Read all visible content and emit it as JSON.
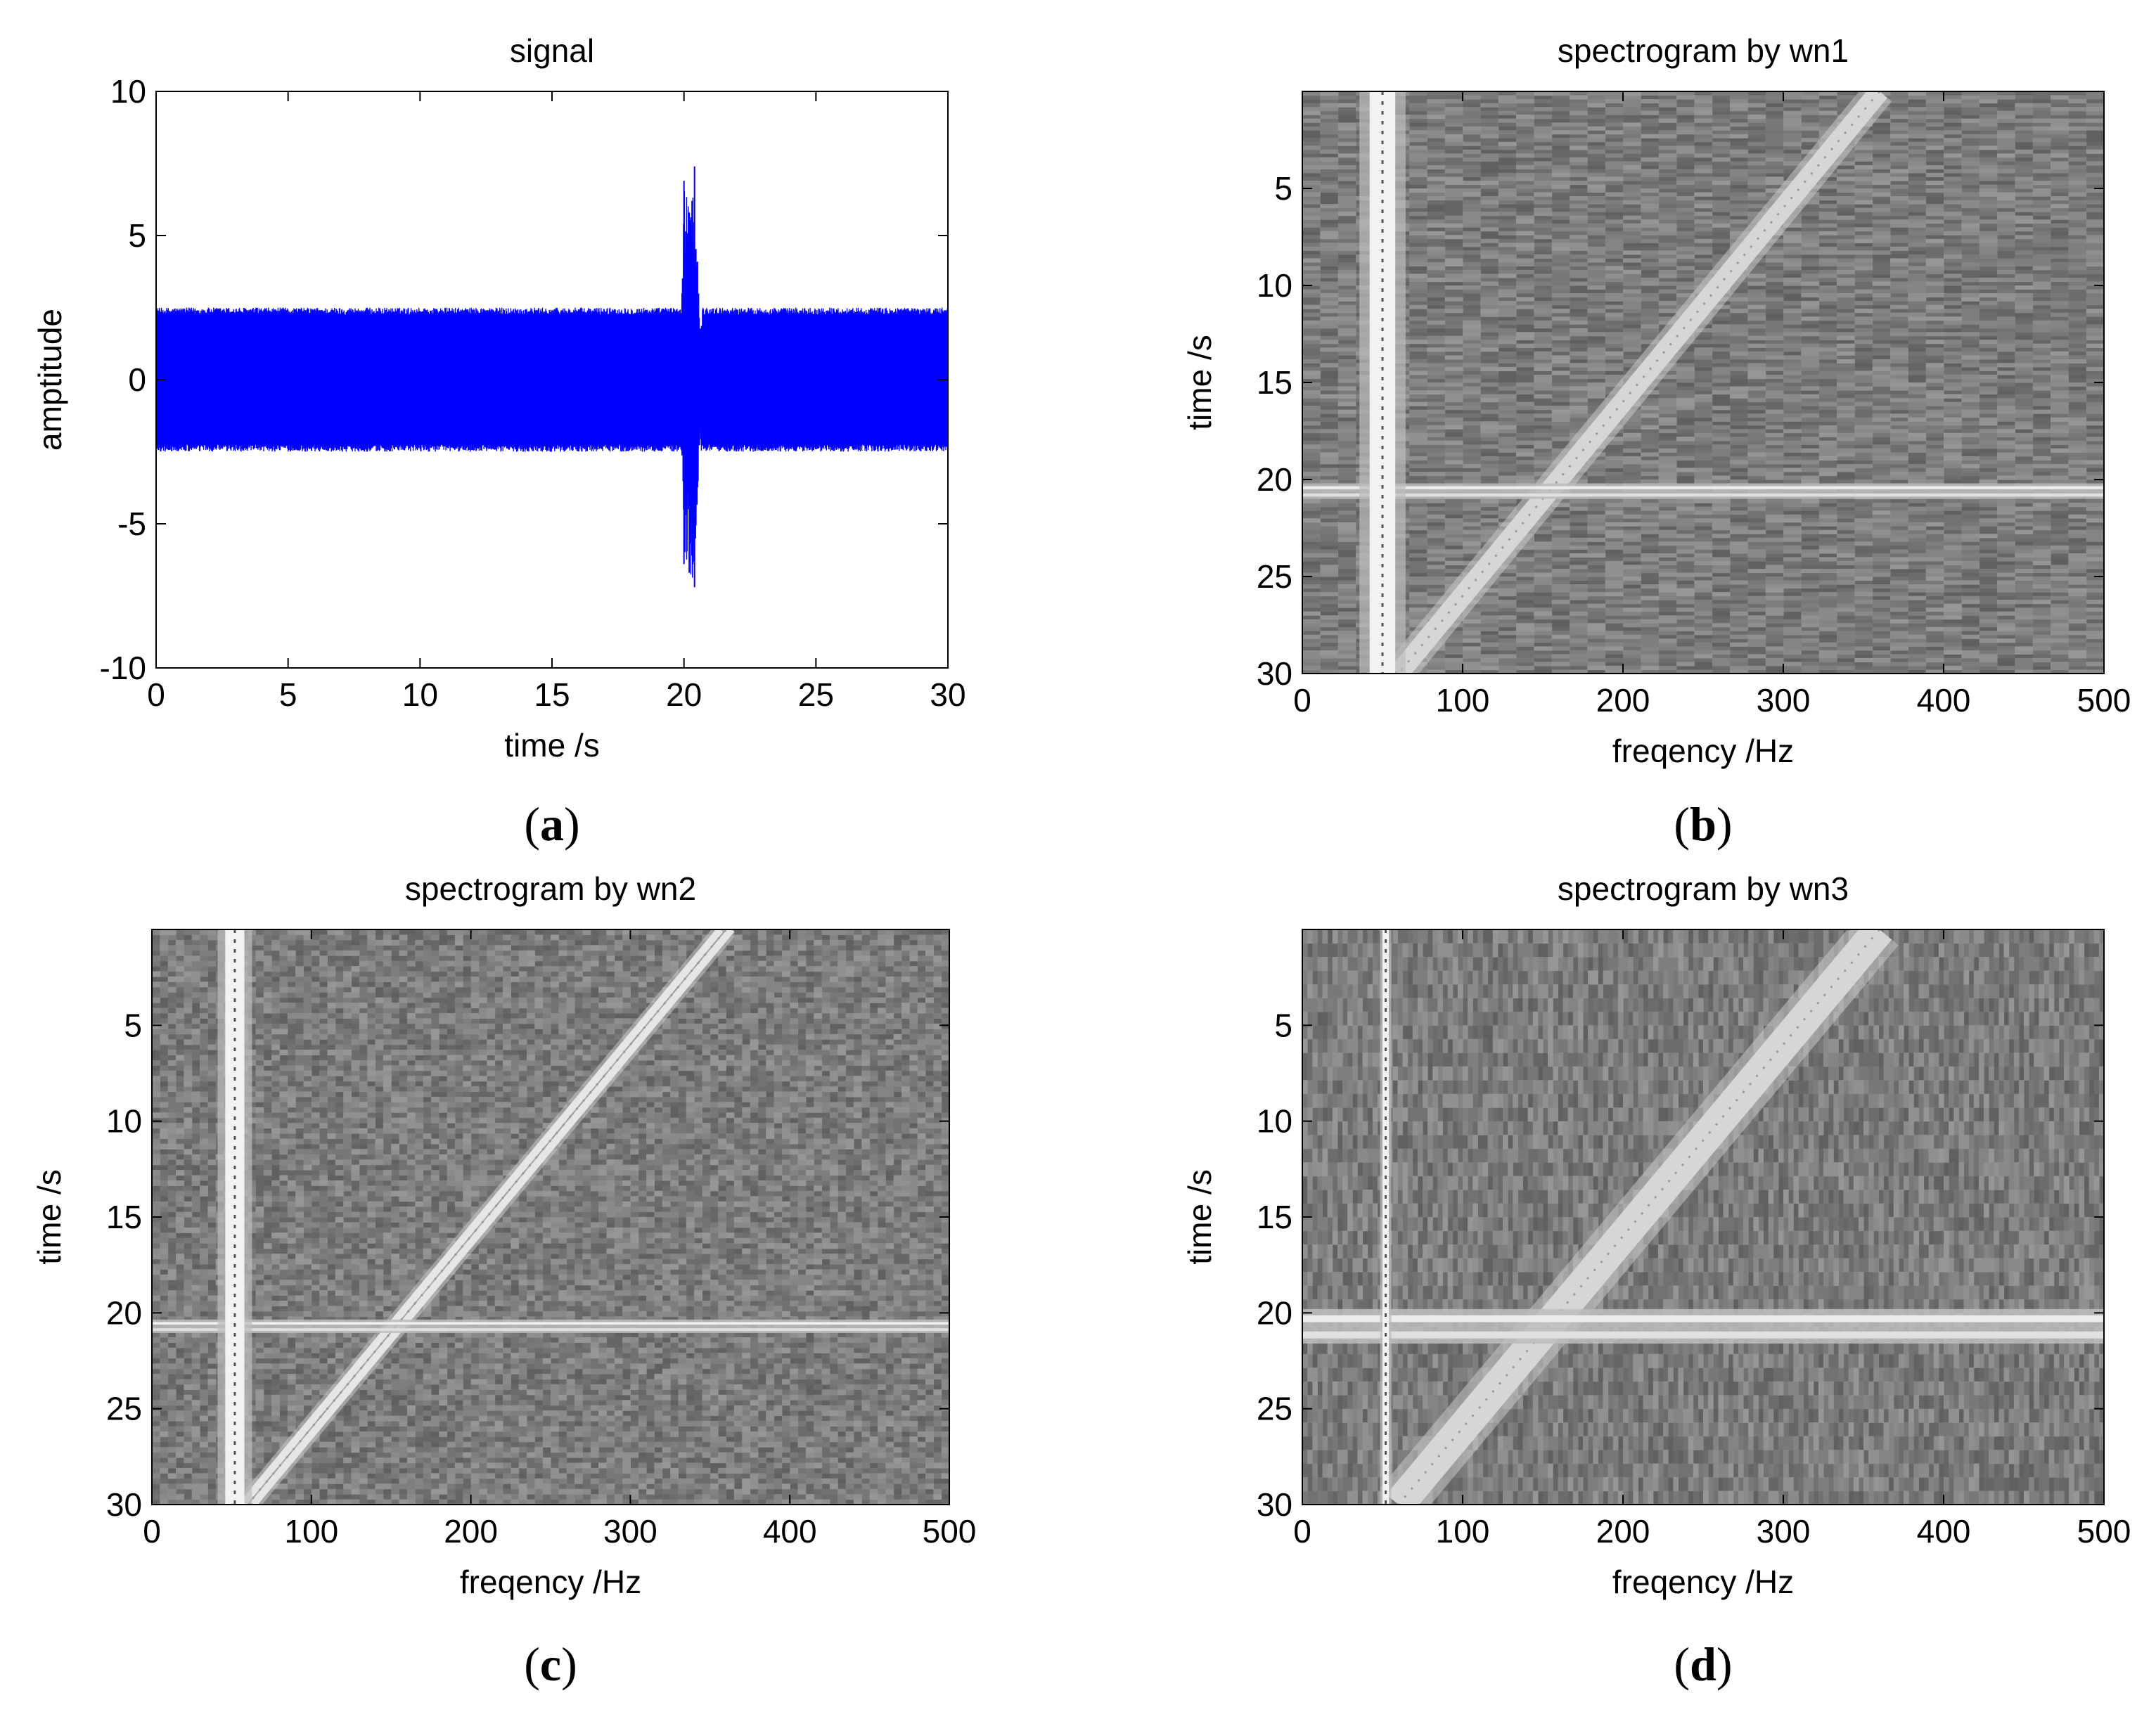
{
  "figure": {
    "panel_labels": [
      {
        "open": "(",
        "letter": "a",
        "close": ")"
      },
      {
        "open": "(",
        "letter": "b",
        "close": ")"
      },
      {
        "open": "(",
        "letter": "c",
        "close": ")"
      },
      {
        "open": "(",
        "letter": "d",
        "close": ")"
      }
    ]
  },
  "chart_data": [
    {
      "id": "a",
      "type": "line",
      "title": "signal",
      "xlabel": "time /s",
      "ylabel": "amptitude",
      "xlim": [
        0,
        30
      ],
      "ylim": [
        -10,
        10
      ],
      "xticks": [
        0,
        5,
        10,
        15,
        20,
        25,
        30
      ],
      "yticks": [
        10,
        5,
        0,
        -5,
        -10
      ],
      "series_color": "#0000ff",
      "series": [
        {
          "name": "signal",
          "description": "dense oscillation between about -2.5 and 2.5 across 0-30 s, with a short transient burst near 20-20.5 s",
          "x": [
            0,
            5,
            10,
            15,
            19.9,
            20.0,
            20.2,
            20.4,
            20.6,
            25,
            30
          ],
          "y_max": [
            2.5,
            2.5,
            2.5,
            2.5,
            2.5,
            6.9,
            5.8,
            7.4,
            2.5,
            2.5,
            2.5
          ],
          "y_min": [
            -2.5,
            -2.5,
            -2.5,
            -2.5,
            -2.5,
            -6.4,
            -6.7,
            -7.2,
            -2.5,
            -2.5,
            -2.5
          ]
        }
      ]
    },
    {
      "id": "b",
      "type": "heatmap",
      "title": "spectrogram by wn1",
      "xlabel": "freqency /Hz",
      "ylabel": "time /s",
      "xlim": [
        0,
        500
      ],
      "ylim": [
        0,
        30
      ],
      "xticks": [
        0,
        100,
        200,
        300,
        400,
        500
      ],
      "yticks": [
        5,
        10,
        15,
        20,
        25,
        30
      ],
      "colormap": "gray",
      "features": {
        "tone": {
          "freq_hz": 50,
          "width_hz": 16
        },
        "chirp": {
          "start": {
            "t": 0,
            "f": 360
          },
          "end": {
            "t": 30,
            "f": 60
          },
          "width_hz": 14
        },
        "transient": {
          "t": 20.6,
          "thickness_s": 0.8
        },
        "noise_texture": "horizontal"
      }
    },
    {
      "id": "c",
      "type": "heatmap",
      "title": "spectrogram by wn2",
      "xlabel": "freqency /Hz",
      "ylabel": "time /s",
      "xlim": [
        0,
        500
      ],
      "ylim": [
        0,
        30
      ],
      "xticks": [
        0,
        100,
        200,
        300,
        400,
        500
      ],
      "yticks": [
        5,
        10,
        15,
        20,
        25,
        30
      ],
      "colormap": "gray",
      "features": {
        "tone": {
          "freq_hz": 52,
          "width_hz": 12
        },
        "chirp": {
          "start": {
            "t": 0,
            "f": 360
          },
          "end": {
            "t": 30,
            "f": 60
          },
          "width_hz": 10,
          "double_line": true
        },
        "transient": {
          "t": 20.7,
          "thickness_s": 0.7
        },
        "noise_texture": "blocky"
      }
    },
    {
      "id": "d",
      "type": "heatmap",
      "title": "spectrogram by wn3",
      "xlabel": "freqency /Hz",
      "ylabel": "time /s",
      "xlim": [
        0,
        500
      ],
      "ylim": [
        0,
        30
      ],
      "xticks": [
        0,
        100,
        200,
        300,
        400,
        500
      ],
      "yticks": [
        5,
        10,
        15,
        20,
        25,
        30
      ],
      "colormap": "gray",
      "features": {
        "tone": {
          "freq_hz": 52,
          "width_hz": 4
        },
        "chirp": {
          "start": {
            "t": 0,
            "f": 360
          },
          "end": {
            "t": 30,
            "f": 60
          },
          "width_hz": 22
        },
        "transient": {
          "t": 20.7,
          "thickness_s": 1.8
        },
        "noise_texture": "vertical"
      }
    }
  ]
}
